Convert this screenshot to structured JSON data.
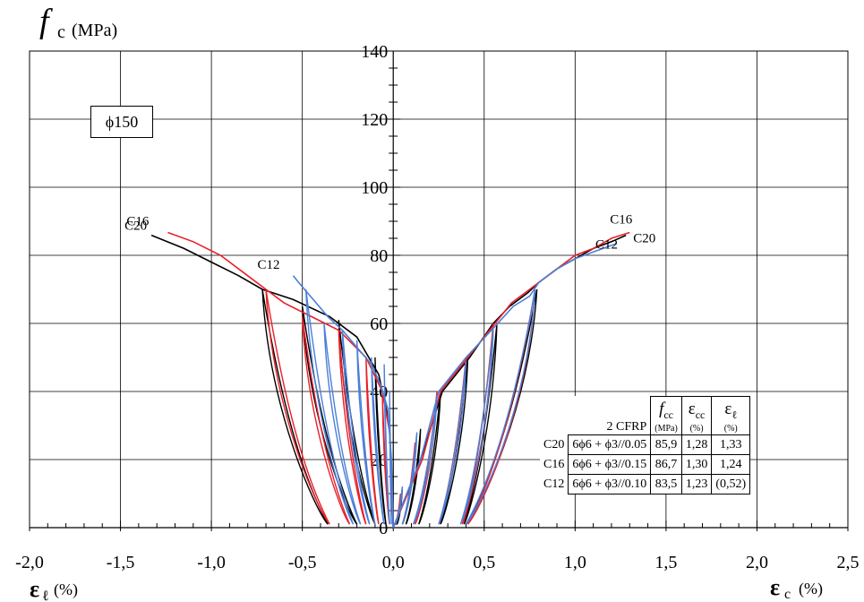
{
  "chart_data": {
    "type": "line",
    "y_title": {
      "symbol": "f",
      "sub": "c",
      "unit": "(MPa)"
    },
    "x_title_left": {
      "symbol": "ε",
      "sub": "ℓ",
      "unit": "(%)"
    },
    "x_title_right": {
      "symbol": "ε",
      "sub": "c",
      "unit": "(%)"
    },
    "xlim": [
      -2.0,
      2.5
    ],
    "ylim": [
      0,
      140
    ],
    "x_ticks": [
      -2.0,
      -1.5,
      -1.0,
      -0.5,
      0.0,
      0.5,
      1.0,
      1.5,
      2.0,
      2.5
    ],
    "x_tick_labels": [
      "-2,0",
      "-1,5",
      "-1,0",
      "-0,5",
      "0,0",
      "0,5",
      "1,0",
      "1,5",
      "2,0",
      "2,5"
    ],
    "y_ticks": [
      0,
      20,
      40,
      60,
      80,
      100,
      120,
      140
    ],
    "y_tick_labels": [
      "0",
      "20",
      "40",
      "60",
      "80",
      "100",
      "120",
      "140"
    ],
    "grid": true,
    "specimen_label": "ϕ150",
    "series": [
      {
        "name": "C20",
        "color": "#000000",
        "left_label": "C20",
        "right_label": "C20",
        "right_envelope": [
          [
            0,
            0
          ],
          [
            0.15,
            20
          ],
          [
            0.27,
            40
          ],
          [
            0.42,
            50
          ],
          [
            0.55,
            60
          ],
          [
            0.64,
            65
          ],
          [
            0.74,
            69
          ],
          [
            0.8,
            72
          ],
          [
            0.9,
            76
          ],
          [
            1.0,
            79
          ],
          [
            1.1,
            82
          ],
          [
            1.2,
            84
          ],
          [
            1.28,
            85.9
          ]
        ],
        "right_loops": [
          [
            0.05,
            12,
            0.02
          ],
          [
            0.15,
            29,
            0.07
          ],
          [
            0.26,
            40,
            0.14
          ],
          [
            0.41,
            50,
            0.26
          ],
          [
            0.57,
            60,
            0.39
          ],
          [
            0.79,
            70,
            0.4
          ]
        ],
        "left_envelope": [
          [
            0,
            0
          ],
          [
            -0.02,
            30
          ],
          [
            -0.08,
            45
          ],
          [
            -0.2,
            56
          ],
          [
            -0.35,
            62
          ],
          [
            -0.55,
            67
          ],
          [
            -0.72,
            70
          ],
          [
            -0.85,
            74
          ],
          [
            -1.0,
            78
          ],
          [
            -1.15,
            82
          ],
          [
            -1.33,
            85.9
          ]
        ],
        "left_loops": [
          [
            -0.1,
            50,
            -0.04
          ],
          [
            -0.3,
            61,
            -0.1
          ],
          [
            -0.5,
            65,
            -0.2
          ],
          [
            -0.72,
            70,
            -0.36
          ]
        ]
      },
      {
        "name": "C16",
        "color": "#e8202a",
        "left_label": "C16",
        "right_label": "C16",
        "right_envelope": [
          [
            0,
            0
          ],
          [
            0.16,
            20
          ],
          [
            0.26,
            40
          ],
          [
            0.41,
            50
          ],
          [
            0.56,
            60
          ],
          [
            0.65,
            66
          ],
          [
            0.75,
            70
          ],
          [
            0.8,
            72
          ],
          [
            0.9,
            76
          ],
          [
            1.0,
            80
          ],
          [
            1.1,
            82
          ],
          [
            1.2,
            85
          ],
          [
            1.3,
            86.7
          ]
        ],
        "right_loops": [
          [
            0.04,
            10,
            0.01
          ],
          [
            0.12,
            25,
            0.05
          ],
          [
            0.24,
            40,
            0.12
          ],
          [
            0.4,
            50,
            0.25
          ],
          [
            0.55,
            60,
            0.38
          ],
          [
            0.78,
            70,
            0.41
          ]
        ],
        "left_envelope": [
          [
            0,
            0
          ],
          [
            -0.02,
            28
          ],
          [
            -0.06,
            40
          ],
          [
            -0.15,
            50
          ],
          [
            -0.3,
            58
          ],
          [
            -0.45,
            62
          ],
          [
            -0.6,
            66
          ],
          [
            -0.7,
            70
          ],
          [
            -0.8,
            74
          ],
          [
            -0.95,
            80
          ],
          [
            -1.1,
            84
          ],
          [
            -1.24,
            86.7
          ]
        ],
        "left_loops": [
          [
            -0.06,
            40,
            -0.02
          ],
          [
            -0.15,
            50,
            -0.08
          ],
          [
            -0.3,
            58,
            -0.15
          ],
          [
            -0.5,
            62,
            -0.24
          ],
          [
            -0.7,
            70,
            -0.35
          ]
        ]
      },
      {
        "name": "C12",
        "color": "#4a7fd8",
        "left_label": "C12",
        "right_label": "C12",
        "right_envelope": [
          [
            0,
            0
          ],
          [
            0.15,
            20
          ],
          [
            0.25,
            40
          ],
          [
            0.4,
            50
          ],
          [
            0.54,
            58
          ],
          [
            0.66,
            65
          ],
          [
            0.75,
            68
          ],
          [
            0.8,
            72
          ],
          [
            0.9,
            76
          ],
          [
            1.0,
            79
          ],
          [
            1.1,
            81
          ],
          [
            1.23,
            83.5
          ]
        ],
        "right_loops": [
          [
            0.05,
            12,
            0.01
          ],
          [
            0.13,
            28,
            0.05
          ],
          [
            0.24,
            39,
            0.11
          ],
          [
            0.4,
            49,
            0.25
          ],
          [
            0.55,
            58,
            0.37
          ],
          [
            0.78,
            70,
            0.4
          ]
        ],
        "left_envelope": [
          [
            0,
            0
          ],
          [
            -0.01,
            20
          ],
          [
            -0.03,
            35
          ],
          [
            -0.07,
            42
          ],
          [
            -0.12,
            48
          ],
          [
            -0.2,
            53
          ],
          [
            -0.28,
            58
          ],
          [
            -0.36,
            62
          ],
          [
            -0.44,
            67
          ],
          [
            -0.52,
            72
          ],
          [
            -0.55,
            74
          ]
        ],
        "left_loops": [
          [
            -0.02,
            40,
            -0.01
          ],
          [
            -0.05,
            48,
            -0.02
          ],
          [
            -0.12,
            50,
            -0.05
          ],
          [
            -0.2,
            55,
            -0.1
          ],
          [
            -0.28,
            58,
            -0.13
          ],
          [
            -0.38,
            60,
            -0.18
          ],
          [
            -0.48,
            70,
            -0.22
          ]
        ]
      }
    ],
    "table": {
      "group_label": "2 CFRP",
      "columns": [
        {
          "symbol": "f",
          "sub": "cc",
          "unit": "(MPa)"
        },
        {
          "symbol": "ε",
          "sub": "cc",
          "unit": "(%)"
        },
        {
          "symbol": "ε",
          "sub": "ℓ",
          "unit": "(%)"
        }
      ],
      "rows": [
        {
          "name": "C20",
          "config": "6ϕ6 + ϕ3//0.05",
          "fcc": "85,9",
          "ecc": "1,28",
          "el": "1,33"
        },
        {
          "name": "C16",
          "config": "6ϕ6 + ϕ3//0.15",
          "fcc": "86,7",
          "ecc": "1,30",
          "el": "1,24"
        },
        {
          "name": "C12",
          "config": "6ϕ6 + ϕ3//0.10",
          "fcc": "83,5",
          "ecc": "1,23",
          "el": "(0,52)"
        }
      ]
    }
  }
}
